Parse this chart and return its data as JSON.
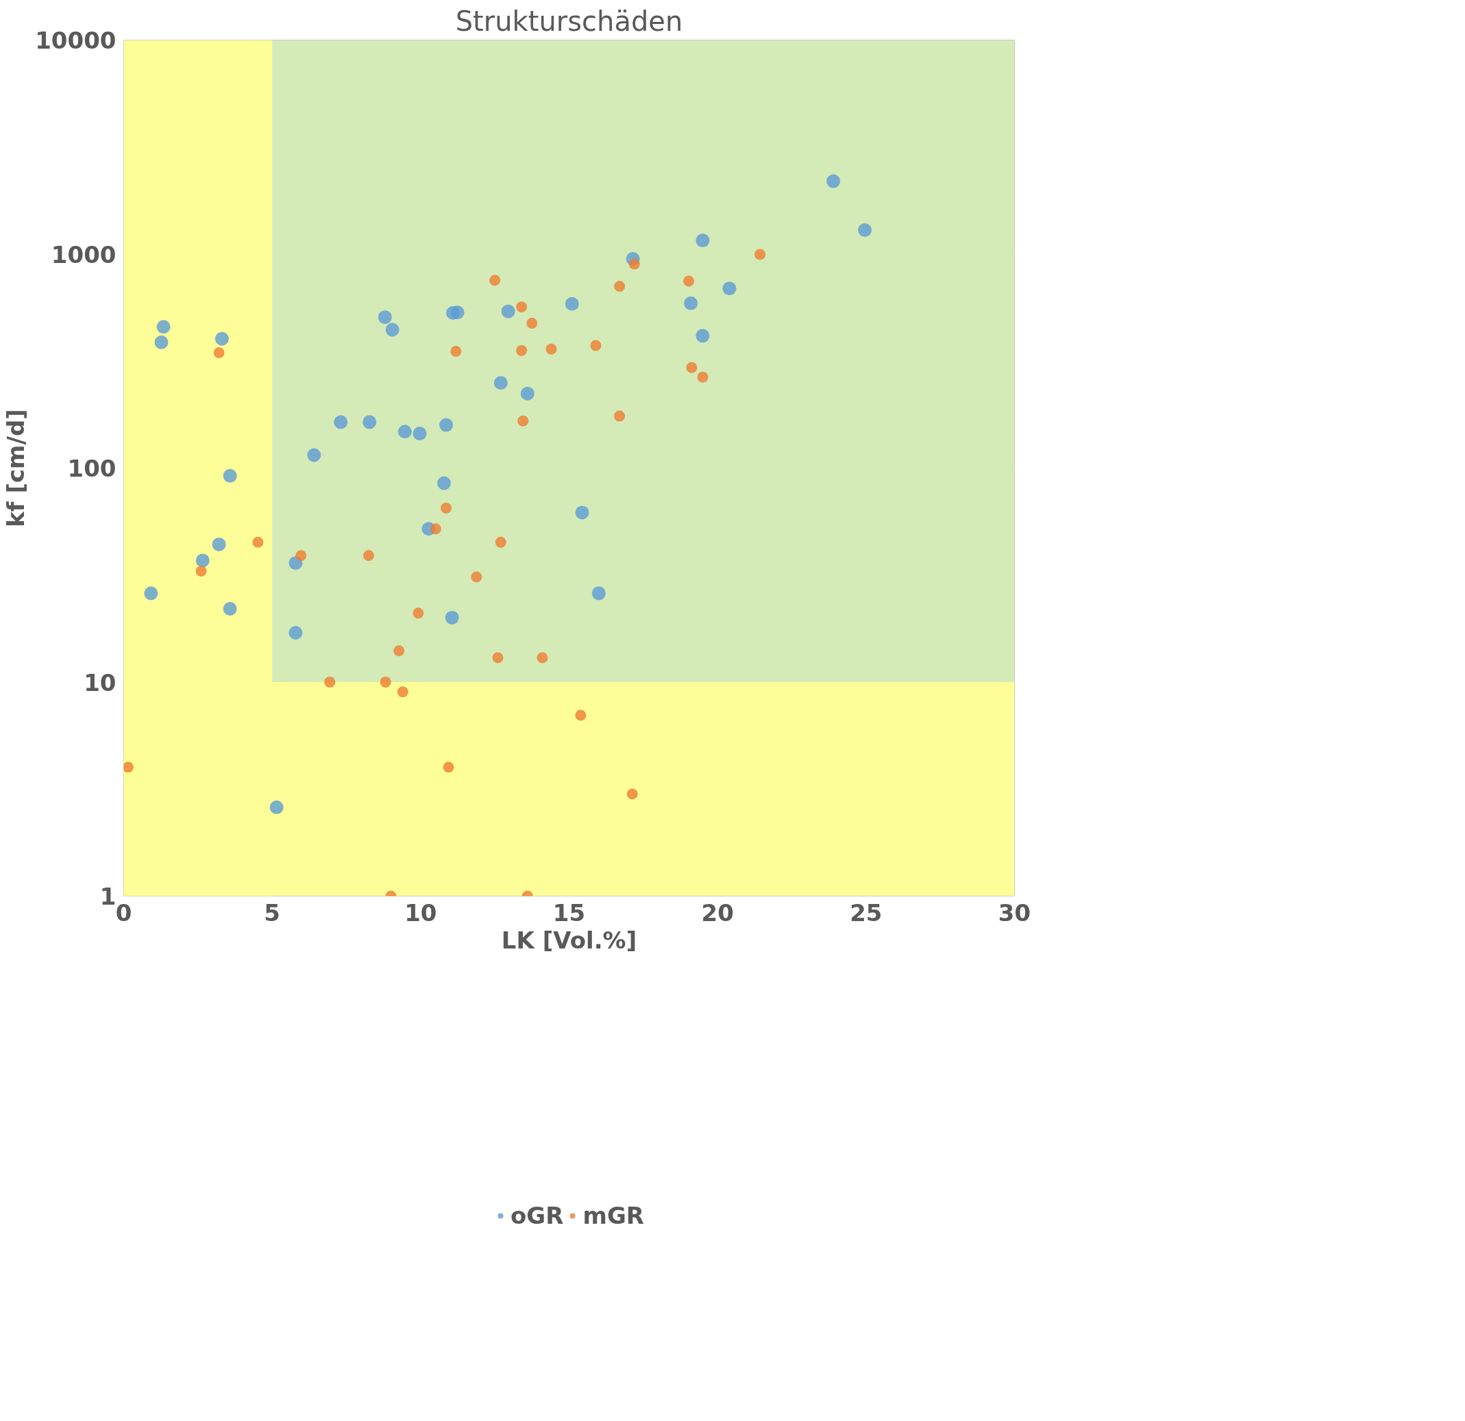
{
  "chart_data": {
    "type": "scatter",
    "title": "Strukturschäden",
    "xlabel": "LK [Vol.%]",
    "ylabel": "kf [cm/d]",
    "log": "y",
    "xlim": [
      0,
      30
    ],
    "ylim": [
      1,
      10000
    ],
    "xticks": [
      0,
      5,
      10,
      15,
      20,
      25,
      30
    ],
    "yticks": [
      1,
      10,
      100,
      1000,
      10000
    ],
    "grid": true,
    "legend": "bottom",
    "marker": "circle",
    "bands": [
      {
        "axis": "y",
        "from": 10,
        "to": 10000,
        "color": "#d4eab7"
      },
      {
        "axis": "y",
        "from": 1,
        "to": 10,
        "color": "#fefe98"
      },
      {
        "axis": "x",
        "from": 0,
        "to": 5,
        "color": "#fefe98"
      }
    ],
    "series": [
      {
        "name": "oGR",
        "color": "#5b9bd5",
        "x": [
          1.34,
          1.27,
          3.31,
          3.58,
          3.21,
          2.66,
          0.92,
          3.58,
          5.15,
          23.9,
          24.96,
          19.5,
          17.15,
          20.4,
          15.1,
          19.1,
          19.5,
          8.8,
          9.05,
          11.09,
          11.24,
          12.95,
          12.7,
          13.6,
          7.31,
          8.28,
          9.47,
          9.97,
          10.86,
          6.41,
          10.79,
          10.27,
          15.44,
          5.79,
          16.0,
          5.79,
          11.06
        ],
        "values": [
          457,
          387,
          402,
          92,
          44,
          37,
          26,
          22,
          2.6,
          2190,
          1294,
          1158,
          950,
          691,
          585,
          589,
          415,
          507,
          443,
          531,
          534,
          540,
          250,
          223,
          164,
          164,
          148,
          145,
          159,
          115,
          85,
          52,
          62,
          36,
          26,
          17,
          20
        ]
      },
      {
        "name": "mGR",
        "color": "#ed7d31",
        "x": [
          3.21,
          4.52,
          2.61,
          0.15,
          9.0,
          13.6,
          21.43,
          17.2,
          12.5,
          19.03,
          16.7,
          13.4,
          13.75,
          11.19,
          13.4,
          14.4,
          15.9,
          19.13,
          19.5,
          13.45,
          16.7,
          10.86,
          10.51,
          12.7,
          5.97,
          8.25,
          11.88,
          9.92,
          9.27,
          12.6,
          14.1,
          6.94,
          8.82,
          9.4,
          15.39,
          10.94,
          17.13
        ],
        "values": [
          346,
          45,
          33,
          4.0,
          1,
          1,
          996,
          898,
          754,
          748,
          707,
          566,
          475,
          351,
          354,
          360,
          374,
          295,
          266,
          166,
          175,
          65,
          52,
          45,
          39,
          39,
          31,
          21,
          14,
          13,
          13,
          10,
          10,
          9,
          7,
          4,
          3
        ]
      }
    ]
  }
}
